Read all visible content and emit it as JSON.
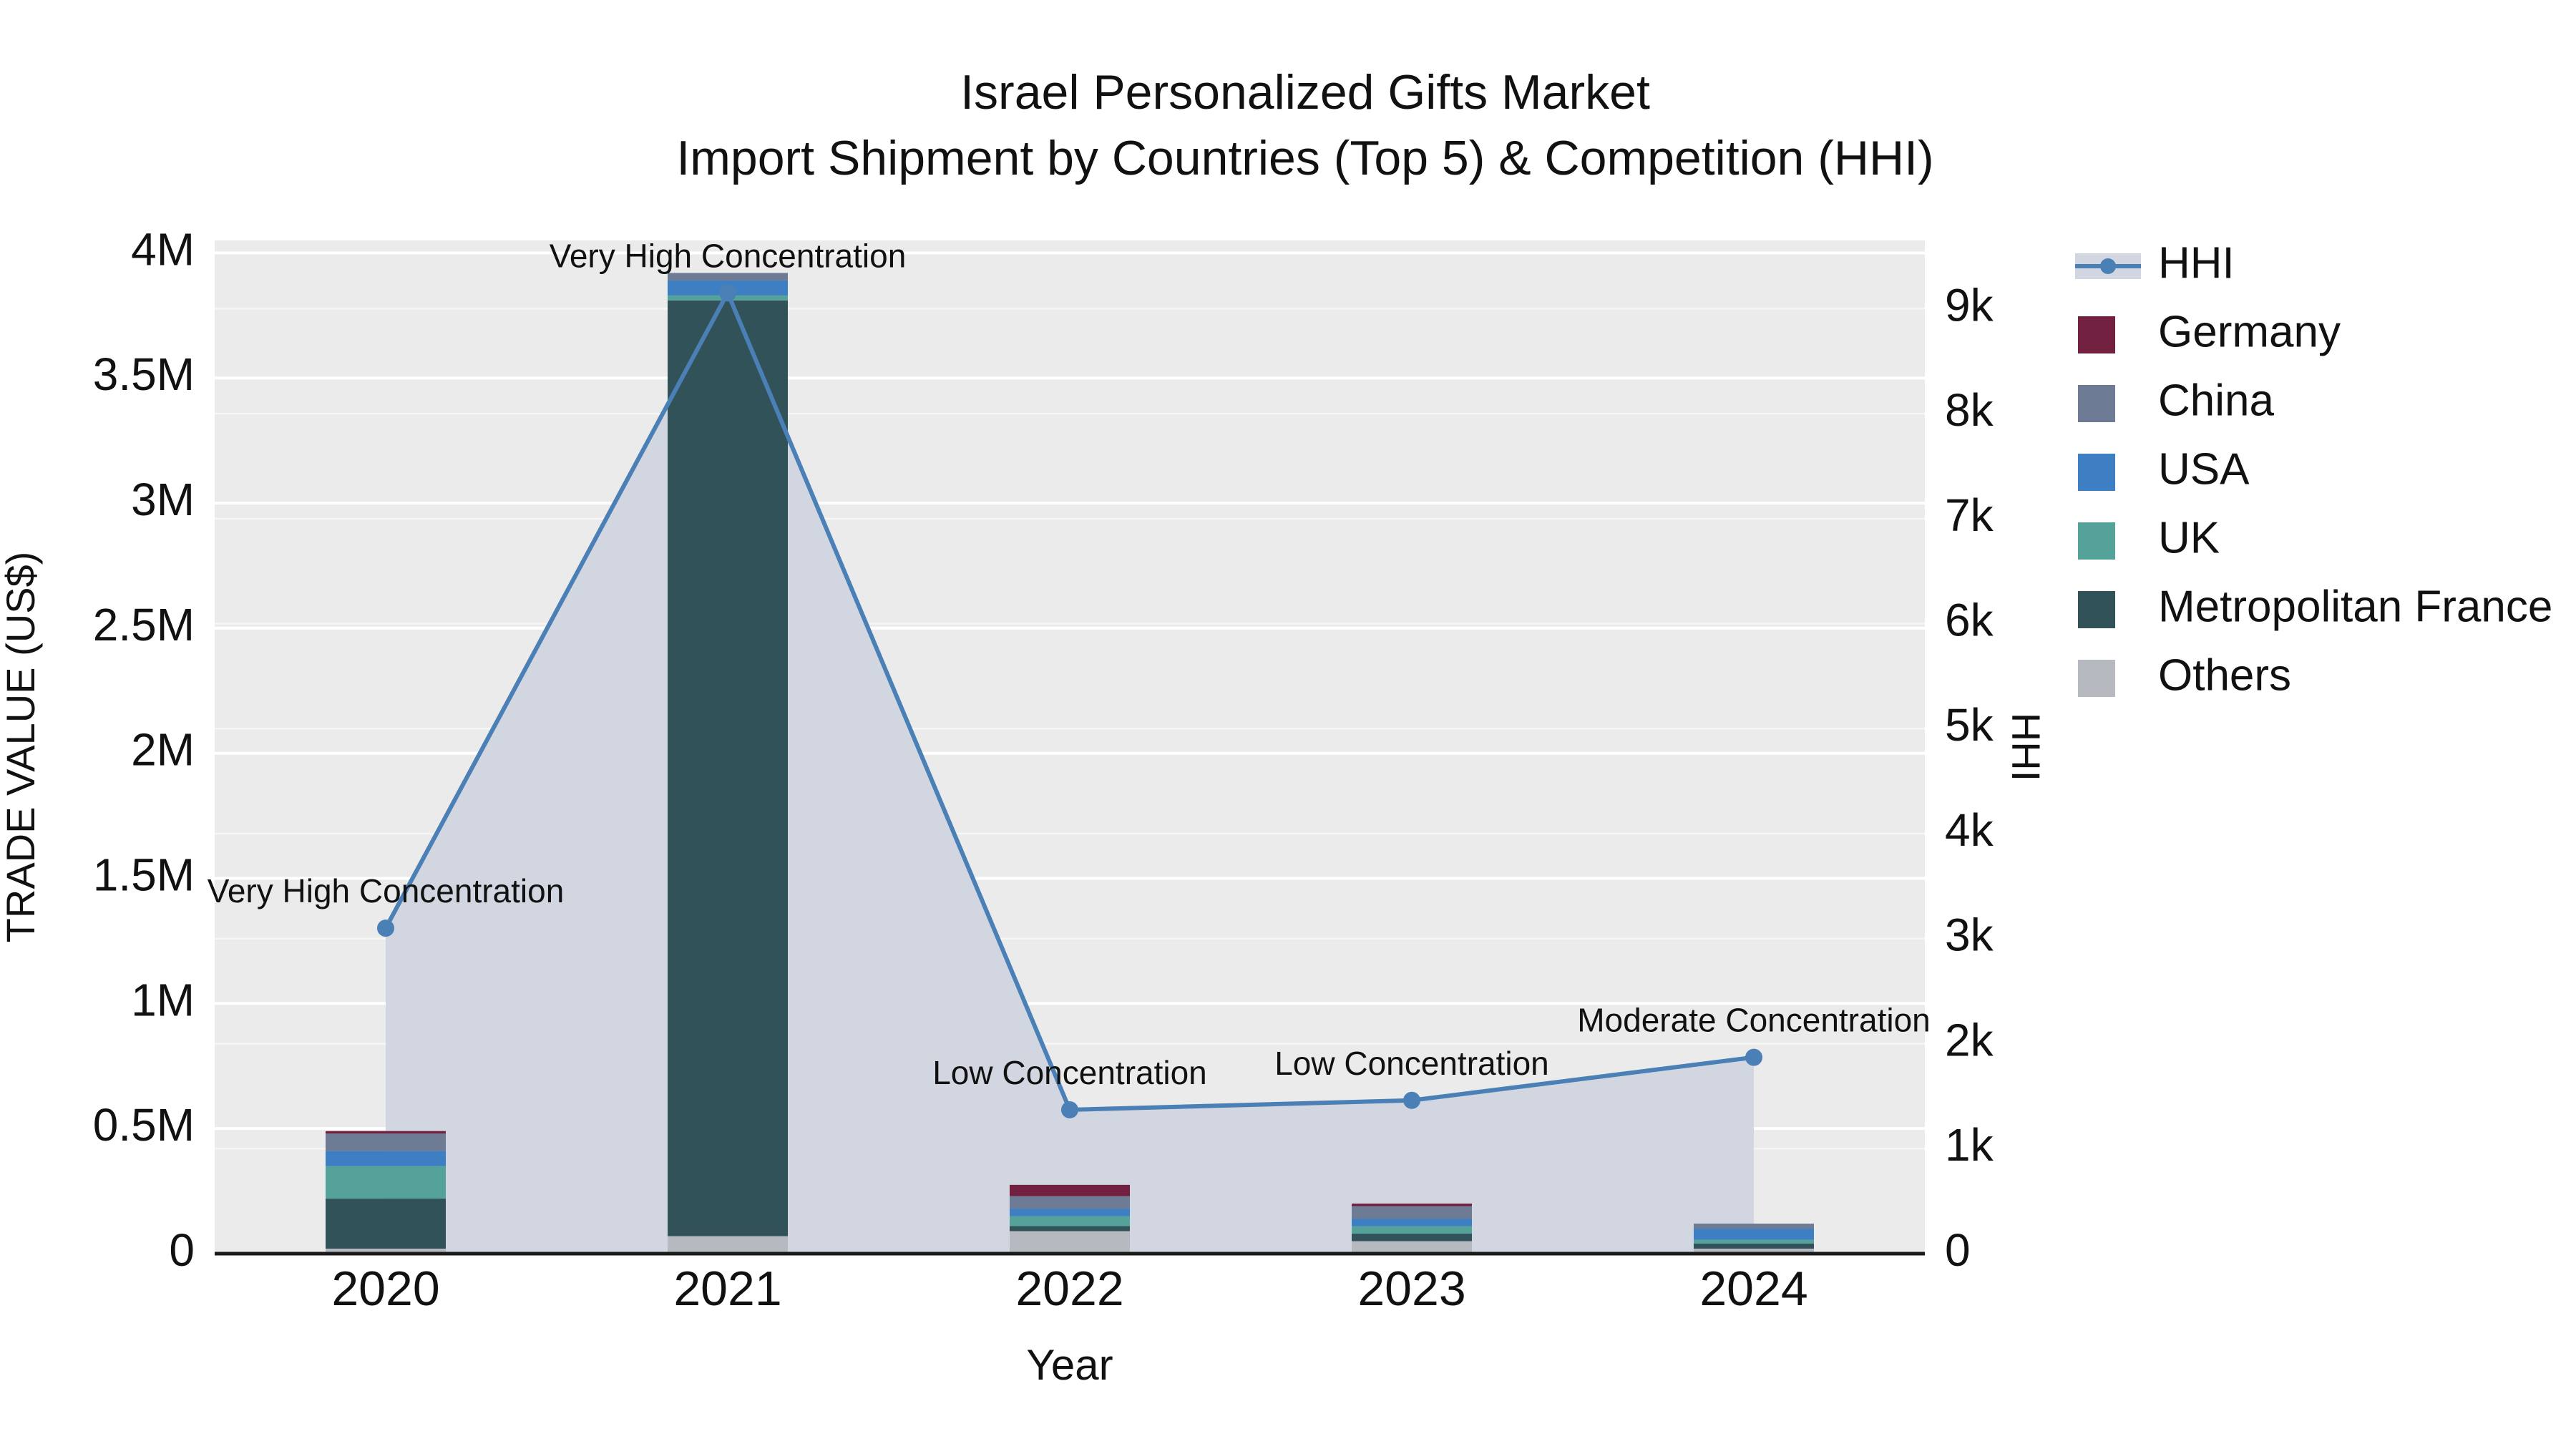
{
  "title": {
    "line1": "Israel Personalized Gifts Market",
    "line2": "Import Shipment by Countries (Top 5) & Competition (HHI)"
  },
  "axes": {
    "x_title": "Year",
    "y_left_title": "TRADE VALUE (US$)",
    "y_right_title": "HHI"
  },
  "chart_data": {
    "type": "combo-stacked-bar-line",
    "title": "Israel Personalized Gifts Market — Import Shipment by Countries (Top 5) & Competition (HHI)",
    "categories": [
      "2020",
      "2021",
      "2022",
      "2023",
      "2024"
    ],
    "bar_series": [
      {
        "name": "Others",
        "color": "#b6bac0",
        "values": [
          20000,
          70000,
          90000,
          50000,
          20000
        ]
      },
      {
        "name": "Metropolitan France",
        "color": "#32525a",
        "values": [
          200000,
          3740000,
          20000,
          30000,
          20000
        ]
      },
      {
        "name": "UK",
        "color": "#55a29b",
        "values": [
          130000,
          20000,
          40000,
          30000,
          15000
        ]
      },
      {
        "name": "USA",
        "color": "#3d7fc2",
        "values": [
          60000,
          60000,
          30000,
          30000,
          45000
        ]
      },
      {
        "name": "China",
        "color": "#6e7b94",
        "values": [
          70000,
          30000,
          50000,
          50000,
          20000
        ]
      },
      {
        "name": "Germany",
        "color": "#722040",
        "values": [
          10000,
          0,
          45000,
          10000,
          0
        ]
      }
    ],
    "bar_totals": [
      490000,
      3920000,
      275000,
      200000,
      120000
    ],
    "line_series": {
      "name": "HHI",
      "color": "#4a80b5",
      "fill_color": "#d2d6e0",
      "values": [
        3100,
        9150,
        1370,
        1460,
        1870
      ]
    },
    "annotations": [
      {
        "index": 0,
        "text": "Very High Concentration"
      },
      {
        "index": 1,
        "text": "Very High Concentration"
      },
      {
        "index": 2,
        "text": "Low Concentration"
      },
      {
        "index": 3,
        "text": "Low Concentration"
      },
      {
        "index": 4,
        "text": "Moderate Concentration"
      }
    ],
    "y_left": {
      "title": "TRADE VALUE (US$)",
      "max": 4050000,
      "tick_values": [
        0,
        500000,
        1000000,
        1500000,
        2000000,
        2500000,
        3000000,
        3500000,
        4000000
      ],
      "tick_labels": [
        "0",
        "0.5M",
        "1M",
        "1.5M",
        "2M",
        "2.5M",
        "3M",
        "3.5M",
        "4M"
      ]
    },
    "y_right": {
      "title": "HHI",
      "max": 9650,
      "tick_values": [
        0,
        1000,
        2000,
        3000,
        4000,
        5000,
        6000,
        7000,
        8000,
        9000
      ],
      "tick_labels": [
        "0",
        "1k",
        "2k",
        "3k",
        "4k",
        "5k",
        "6k",
        "7k",
        "8k",
        "9k"
      ]
    },
    "x_title": "Year",
    "legend_order": [
      "HHI",
      "Germany",
      "China",
      "USA",
      "UK",
      "Metropolitan France",
      "Others"
    ],
    "plot_background": "#ebebeb",
    "grid_on": true,
    "legend_position": "right"
  }
}
